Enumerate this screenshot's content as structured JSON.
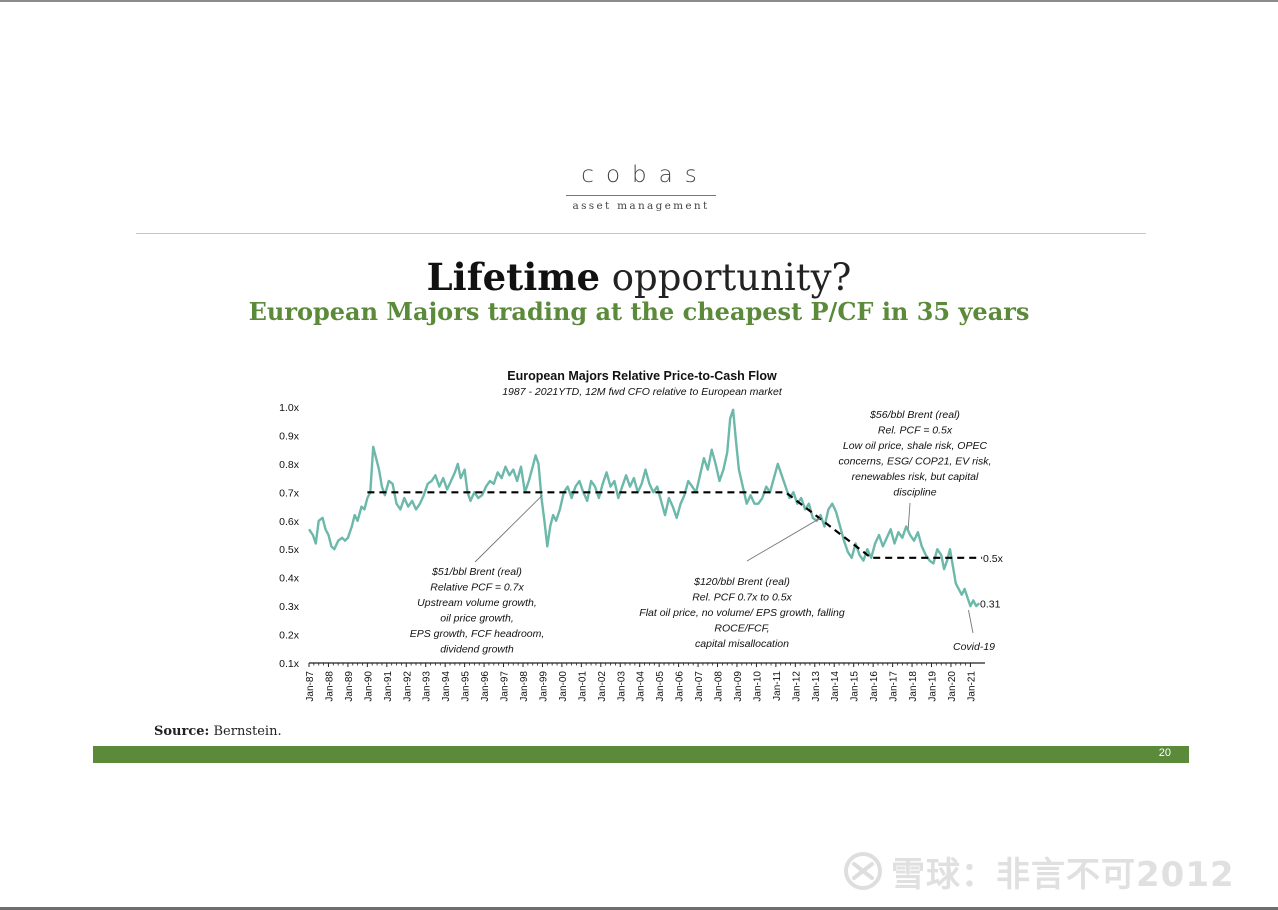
{
  "logo": {
    "word": "cobas",
    "tagline": "asset management"
  },
  "slide": {
    "title_bold": "Lifetime",
    "title_light": "opportunity?",
    "subtitle": "European Majors trading at the cheapest P/CF in 35 years",
    "source_label": "Source:",
    "source_text": "Bernstein.",
    "page_number": "20"
  },
  "colors": {
    "brand_green": "#5a8a3a",
    "series": "#6cb8aa",
    "trend": "#000000"
  },
  "watermark": {
    "text": "雪球：非言不可2012",
    "icon": "xueqiu-logo"
  },
  "chart_data": {
    "type": "line",
    "title": "European Majors Relative Price-to-Cash Flow",
    "subtitle": "1987 - 2021YTD, 12M fwd CFO relative to European market",
    "ylim": [
      0.1,
      1.0
    ],
    "yticks": [
      "1.0x",
      "0.9x",
      "0.8x",
      "0.7x",
      "0.6x",
      "0.5x",
      "0.4x",
      "0.3x",
      "0.2x",
      "0.1x"
    ],
    "xlim": [
      1987,
      2021.75
    ],
    "xticks": [
      "Jan-87",
      "Jan-88",
      "Jan-89",
      "Jan-90",
      "Jan-91",
      "Jan-92",
      "Jan-93",
      "Jan-94",
      "Jan-95",
      "Jan-96",
      "Jan-97",
      "Jan-98",
      "Jan-99",
      "Jan-00",
      "Jan-01",
      "Jan-02",
      "Jan-03",
      "Jan-04",
      "Jan-05",
      "Jan-06",
      "Jan-07",
      "Jan-08",
      "Jan-09",
      "Jan-10",
      "Jan-11",
      "Jan-12",
      "Jan-13",
      "Jan-14",
      "Jan-15",
      "Jan-16",
      "Jan-17",
      "Jan-18",
      "Jan-19",
      "Jan-20",
      "Jan-21"
    ],
    "grid": false,
    "series": [
      {
        "values": [
          [
            1987.0,
            0.57
          ],
          [
            1987.2,
            0.55
          ],
          [
            1987.35,
            0.52
          ],
          [
            1987.5,
            0.6
          ],
          [
            1987.7,
            0.61
          ],
          [
            1987.85,
            0.57
          ],
          [
            1988.0,
            0.55
          ],
          [
            1988.15,
            0.51
          ],
          [
            1988.3,
            0.5
          ],
          [
            1988.5,
            0.53
          ],
          [
            1988.7,
            0.54
          ],
          [
            1988.85,
            0.53
          ],
          [
            1989.0,
            0.54
          ],
          [
            1989.2,
            0.58
          ],
          [
            1989.35,
            0.62
          ],
          [
            1989.5,
            0.6
          ],
          [
            1989.7,
            0.65
          ],
          [
            1989.85,
            0.64
          ],
          [
            1990.0,
            0.68
          ],
          [
            1990.15,
            0.7
          ],
          [
            1990.3,
            0.86
          ],
          [
            1990.45,
            0.82
          ],
          [
            1990.6,
            0.78
          ],
          [
            1990.75,
            0.72
          ],
          [
            1990.9,
            0.69
          ],
          [
            1991.1,
            0.74
          ],
          [
            1991.3,
            0.73
          ],
          [
            1991.5,
            0.66
          ],
          [
            1991.7,
            0.64
          ],
          [
            1991.9,
            0.68
          ],
          [
            1992.1,
            0.65
          ],
          [
            1992.3,
            0.67
          ],
          [
            1992.5,
            0.64
          ],
          [
            1992.7,
            0.66
          ],
          [
            1992.9,
            0.69
          ],
          [
            1993.1,
            0.73
          ],
          [
            1993.3,
            0.74
          ],
          [
            1993.5,
            0.76
          ],
          [
            1993.7,
            0.72
          ],
          [
            1993.9,
            0.75
          ],
          [
            1994.1,
            0.71
          ],
          [
            1994.3,
            0.74
          ],
          [
            1994.5,
            0.77
          ],
          [
            1994.65,
            0.8
          ],
          [
            1994.8,
            0.75
          ],
          [
            1995.0,
            0.78
          ],
          [
            1995.15,
            0.7
          ],
          [
            1995.3,
            0.67
          ],
          [
            1995.5,
            0.7
          ],
          [
            1995.7,
            0.68
          ],
          [
            1995.9,
            0.69
          ],
          [
            1996.1,
            0.72
          ],
          [
            1996.3,
            0.74
          ],
          [
            1996.5,
            0.73
          ],
          [
            1996.7,
            0.77
          ],
          [
            1996.9,
            0.75
          ],
          [
            1997.1,
            0.79
          ],
          [
            1997.3,
            0.76
          ],
          [
            1997.5,
            0.78
          ],
          [
            1997.7,
            0.74
          ],
          [
            1997.9,
            0.79
          ],
          [
            1998.1,
            0.7
          ],
          [
            1998.3,
            0.74
          ],
          [
            1998.5,
            0.79
          ],
          [
            1998.65,
            0.83
          ],
          [
            1998.8,
            0.8
          ],
          [
            1998.95,
            0.68
          ],
          [
            1999.1,
            0.6
          ],
          [
            1999.25,
            0.51
          ],
          [
            1999.4,
            0.58
          ],
          [
            1999.55,
            0.62
          ],
          [
            1999.7,
            0.6
          ],
          [
            1999.9,
            0.64
          ],
          [
            2000.1,
            0.7
          ],
          [
            2000.3,
            0.72
          ],
          [
            2000.5,
            0.68
          ],
          [
            2000.7,
            0.72
          ],
          [
            2000.9,
            0.74
          ],
          [
            2001.1,
            0.7
          ],
          [
            2001.3,
            0.67
          ],
          [
            2001.5,
            0.74
          ],
          [
            2001.7,
            0.72
          ],
          [
            2001.9,
            0.68
          ],
          [
            2002.1,
            0.73
          ],
          [
            2002.3,
            0.77
          ],
          [
            2002.5,
            0.72
          ],
          [
            2002.7,
            0.74
          ],
          [
            2002.9,
            0.68
          ],
          [
            2003.1,
            0.72
          ],
          [
            2003.3,
            0.76
          ],
          [
            2003.5,
            0.72
          ],
          [
            2003.7,
            0.75
          ],
          [
            2003.9,
            0.7
          ],
          [
            2004.1,
            0.73
          ],
          [
            2004.3,
            0.78
          ],
          [
            2004.5,
            0.73
          ],
          [
            2004.7,
            0.7
          ],
          [
            2004.9,
            0.72
          ],
          [
            2005.1,
            0.67
          ],
          [
            2005.3,
            0.62
          ],
          [
            2005.5,
            0.68
          ],
          [
            2005.7,
            0.65
          ],
          [
            2005.9,
            0.61
          ],
          [
            2006.1,
            0.66
          ],
          [
            2006.3,
            0.69
          ],
          [
            2006.5,
            0.74
          ],
          [
            2006.7,
            0.72
          ],
          [
            2006.9,
            0.7
          ],
          [
            2007.1,
            0.76
          ],
          [
            2007.3,
            0.82
          ],
          [
            2007.5,
            0.78
          ],
          [
            2007.7,
            0.85
          ],
          [
            2007.9,
            0.8
          ],
          [
            2008.1,
            0.74
          ],
          [
            2008.3,
            0.78
          ],
          [
            2008.5,
            0.84
          ],
          [
            2008.65,
            0.96
          ],
          [
            2008.8,
            0.99
          ],
          [
            2008.95,
            0.88
          ],
          [
            2009.1,
            0.78
          ],
          [
            2009.3,
            0.72
          ],
          [
            2009.5,
            0.66
          ],
          [
            2009.7,
            0.69
          ],
          [
            2009.9,
            0.66
          ],
          [
            2010.1,
            0.66
          ],
          [
            2010.3,
            0.68
          ],
          [
            2010.5,
            0.72
          ],
          [
            2010.7,
            0.7
          ],
          [
            2010.9,
            0.75
          ],
          [
            2011.1,
            0.8
          ],
          [
            2011.3,
            0.76
          ],
          [
            2011.5,
            0.72
          ],
          [
            2011.7,
            0.68
          ],
          [
            2011.9,
            0.7
          ],
          [
            2012.1,
            0.66
          ],
          [
            2012.3,
            0.68
          ],
          [
            2012.5,
            0.64
          ],
          [
            2012.7,
            0.66
          ],
          [
            2012.9,
            0.61
          ],
          [
            2013.1,
            0.6
          ],
          [
            2013.3,
            0.62
          ],
          [
            2013.5,
            0.58
          ],
          [
            2013.7,
            0.64
          ],
          [
            2013.9,
            0.66
          ],
          [
            2014.1,
            0.63
          ],
          [
            2014.3,
            0.58
          ],
          [
            2014.5,
            0.53
          ],
          [
            2014.7,
            0.49
          ],
          [
            2014.9,
            0.47
          ],
          [
            2015.1,
            0.52
          ],
          [
            2015.3,
            0.48
          ],
          [
            2015.5,
            0.46
          ],
          [
            2015.7,
            0.5
          ],
          [
            2015.9,
            0.47
          ],
          [
            2016.1,
            0.52
          ],
          [
            2016.3,
            0.55
          ],
          [
            2016.5,
            0.51
          ],
          [
            2016.7,
            0.54
          ],
          [
            2016.9,
            0.57
          ],
          [
            2017.1,
            0.52
          ],
          [
            2017.3,
            0.56
          ],
          [
            2017.5,
            0.54
          ],
          [
            2017.7,
            0.58
          ],
          [
            2017.9,
            0.55
          ],
          [
            2018.1,
            0.53
          ],
          [
            2018.3,
            0.56
          ],
          [
            2018.5,
            0.51
          ],
          [
            2018.7,
            0.48
          ],
          [
            2018.9,
            0.46
          ],
          [
            2019.1,
            0.45
          ],
          [
            2019.3,
            0.5
          ],
          [
            2019.5,
            0.48
          ],
          [
            2019.65,
            0.43
          ],
          [
            2019.8,
            0.46
          ],
          [
            2019.95,
            0.5
          ],
          [
            2020.1,
            0.44
          ],
          [
            2020.25,
            0.38
          ],
          [
            2020.4,
            0.36
          ],
          [
            2020.55,
            0.34
          ],
          [
            2020.7,
            0.36
          ],
          [
            2020.85,
            0.33
          ],
          [
            2021.0,
            0.3
          ],
          [
            2021.15,
            0.32
          ],
          [
            2021.3,
            0.3
          ],
          [
            2021.45,
            0.31
          ]
        ]
      },
      {
        "style": "dashed",
        "values": [
          [
            1990.0,
            0.7
          ],
          [
            2011.5,
            0.7
          ],
          [
            2015.9,
            0.47
          ],
          [
            2021.6,
            0.47
          ]
        ]
      }
    ],
    "annotations": [
      {
        "lines": [
          "$51/bbl Brent (real)",
          "Relative PCF = 0.7x",
          "Upstream volume growth,",
          "oil price growth,",
          "EPS growth, FCF headroom,",
          "dividend growth"
        ],
        "pointer": [
          1999.0,
          0.69
        ]
      },
      {
        "lines": [
          "$120/bbl Brent (real)",
          "Rel. PCF 0.7x to 0.5x",
          "Flat oil price, no volume/ EPS growth, falling",
          "ROCE/FCF,",
          "capital misallocation"
        ],
        "pointer": [
          2013.3,
          0.61
        ]
      },
      {
        "lines": [
          "$56/bbl Brent (real)",
          "Rel. PCF = 0.5x",
          "Low oil price, shale risk, OPEC",
          "concerns, ESG/ COP21, EV risk,",
          "renewables risk, but capital",
          "discipline"
        ],
        "pointer": [
          2017.8,
          0.57
        ]
      }
    ],
    "end_labels": [
      "0.5x",
      "0.31"
    ],
    "callout": "Covid-19"
  }
}
